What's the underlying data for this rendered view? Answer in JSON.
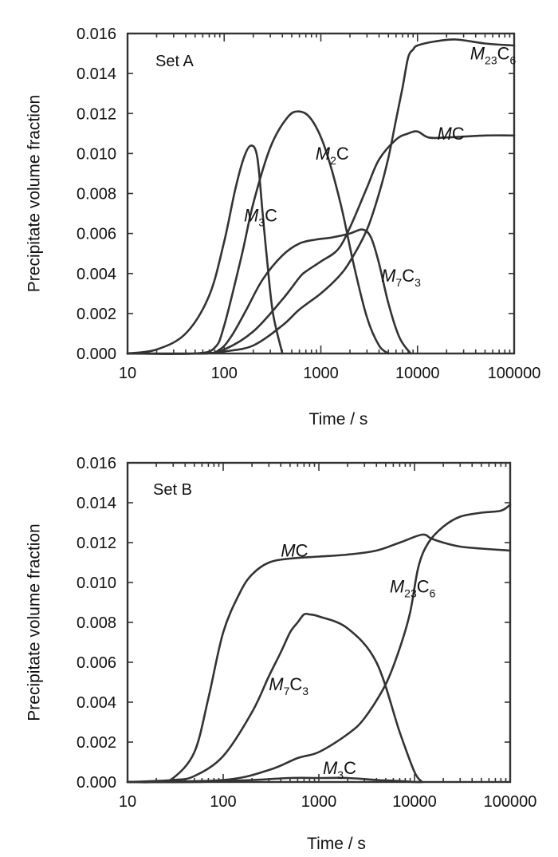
{
  "chart_data": [
    {
      "type": "line",
      "panel_label": "Set A",
      "xlabel": "Time / s",
      "ylabel": "Precipitate volume fraction",
      "xscale": "log",
      "xlim": [
        10,
        100000
      ],
      "ylim": [
        0,
        0.016
      ],
      "x_ticks": [
        "10",
        "100",
        "1000",
        "10000",
        "100000"
      ],
      "y_ticks": [
        "0.000",
        "0.002",
        "0.004",
        "0.006",
        "0.008",
        "0.010",
        "0.012",
        "0.014",
        "0.016"
      ],
      "grid": false,
      "series": [
        {
          "name": "M3C",
          "label": {
            "main": "M",
            "sub": "3",
            "tail": "C"
          },
          "x": [
            10,
            20,
            40,
            70,
            100,
            130,
            160,
            190,
            220,
            250,
            280,
            320,
            400
          ],
          "y": [
            0,
            0.0002,
            0.001,
            0.0029,
            0.0056,
            0.0082,
            0.0098,
            0.0104,
            0.0098,
            0.007,
            0.0045,
            0.002,
            0
          ]
        },
        {
          "name": "M2C",
          "label": {
            "main": "M",
            "sub": "2",
            "tail": "C"
          },
          "x": [
            10,
            50,
            80,
            100,
            150,
            200,
            300,
            450,
            600,
            800,
            1100,
            1600,
            2200,
            3000,
            4000,
            5000
          ],
          "y": [
            0,
            0,
            0.0003,
            0.0014,
            0.0048,
            0.0075,
            0.0103,
            0.0118,
            0.0121,
            0.0117,
            0.0103,
            0.0075,
            0.0044,
            0.0018,
            0.0004,
            0
          ]
        },
        {
          "name": "M7C3",
          "label": {
            "main": "M",
            "sub": "7",
            "tail": "C",
            "sub2": "3"
          },
          "x": [
            10,
            60,
            90,
            120,
            170,
            250,
            400,
            600,
            900,
            1300,
            2000,
            2700,
            3300,
            4000,
            5000,
            6500,
            8500
          ],
          "y": [
            0,
            0,
            0.0002,
            0.0009,
            0.0022,
            0.0037,
            0.0049,
            0.0055,
            0.0057,
            0.0058,
            0.006,
            0.0062,
            0.0058,
            0.0045,
            0.0025,
            0.0008,
            0
          ]
        },
        {
          "name": "MC",
          "label": {
            "main": "M",
            "tail": "C"
          },
          "x": [
            10,
            60,
            100,
            200,
            400,
            600,
            700,
            1000,
            1500,
            2000,
            3000,
            4000,
            6000,
            8000,
            10000,
            13000,
            20000,
            50000,
            100000
          ],
          "y": [
            0,
            0,
            0.0002,
            0.0011,
            0.0027,
            0.0038,
            0.0041,
            0.0046,
            0.0052,
            0.0063,
            0.0083,
            0.0097,
            0.0107,
            0.011,
            0.0111,
            0.0108,
            0.0108,
            0.0109,
            0.0109
          ]
        },
        {
          "name": "M23C6",
          "label": {
            "main": "M",
            "sub": "23",
            "tail": "C",
            "sub2": "6"
          },
          "x": [
            10,
            60,
            100,
            200,
            400,
            600,
            1000,
            1500,
            2000,
            3000,
            4000,
            5000,
            6000,
            7000,
            8000,
            9000,
            10000,
            15000,
            25000,
            50000,
            100000
          ],
          "y": [
            0,
            0,
            0.0001,
            0.0004,
            0.0014,
            0.0022,
            0.003,
            0.0038,
            0.0046,
            0.0062,
            0.008,
            0.0098,
            0.0117,
            0.0133,
            0.0148,
            0.0152,
            0.0154,
            0.0156,
            0.0157,
            0.0155,
            0.0154
          ]
        }
      ]
    },
    {
      "type": "line",
      "panel_label": "Set B",
      "xlabel": "Time / s",
      "ylabel": "Precipitate volume fraction",
      "xscale": "log",
      "xlim": [
        10,
        100000
      ],
      "ylim": [
        0,
        0.016
      ],
      "x_ticks": [
        "10",
        "100",
        "1000",
        "10000",
        "100000"
      ],
      "y_ticks": [
        "0.000",
        "0.002",
        "0.004",
        "0.006",
        "0.008",
        "0.010",
        "0.012",
        "0.014",
        "0.016"
      ],
      "grid": false,
      "series": [
        {
          "name": "MC",
          "label": {
            "main": "M",
            "tail": "C"
          },
          "x": [
            10,
            20,
            30,
            50,
            70,
            100,
            150,
            200,
            300,
            500,
            1000,
            2000,
            4000,
            7000,
            12000,
            15000,
            20000,
            30000,
            50000,
            100000
          ],
          "y": [
            0,
            0,
            0.0002,
            0.0015,
            0.0042,
            0.0075,
            0.0095,
            0.0104,
            0.011,
            0.0112,
            0.0113,
            0.0114,
            0.0116,
            0.012,
            0.0124,
            0.0122,
            0.012,
            0.0118,
            0.0117,
            0.0116
          ]
        },
        {
          "name": "M7C3",
          "label": {
            "main": "M",
            "sub": "7",
            "tail": "C",
            "sub2": "3"
          },
          "x": [
            10,
            30,
            50,
            100,
            200,
            300,
            400,
            500,
            600,
            700,
            800,
            1000,
            2000,
            4000,
            7000,
            10000,
            12000
          ],
          "y": [
            0,
            0.0001,
            0.0003,
            0.0013,
            0.0035,
            0.0053,
            0.0065,
            0.0075,
            0.008,
            0.0084,
            0.0084,
            0.0083,
            0.0077,
            0.006,
            0.0025,
            0.0005,
            0
          ]
        },
        {
          "name": "M23C6",
          "label": {
            "main": "M",
            "sub": "23",
            "tail": "C",
            "sub2": "6"
          },
          "x": [
            10,
            100,
            300,
            600,
            1000,
            2000,
            3000,
            5000,
            7000,
            9000,
            11000,
            14000,
            20000,
            30000,
            50000,
            80000,
            100000
          ],
          "y": [
            0,
            0.0001,
            0.0006,
            0.0012,
            0.0015,
            0.0024,
            0.0032,
            0.0049,
            0.0067,
            0.0085,
            0.0108,
            0.012,
            0.0128,
            0.0133,
            0.0135,
            0.0136,
            0.0139
          ]
        },
        {
          "name": "M3C",
          "label": {
            "main": "M",
            "sub": "3",
            "tail": "C"
          },
          "x": [
            10,
            50,
            200,
            500,
            1000,
            2000,
            4000,
            7000,
            10000,
            12000
          ],
          "y": [
            0,
            0,
            0.0001,
            0.0002,
            0.0002,
            0.0002,
            0.0001,
            5e-05,
            0,
            0
          ]
        }
      ]
    }
  ]
}
